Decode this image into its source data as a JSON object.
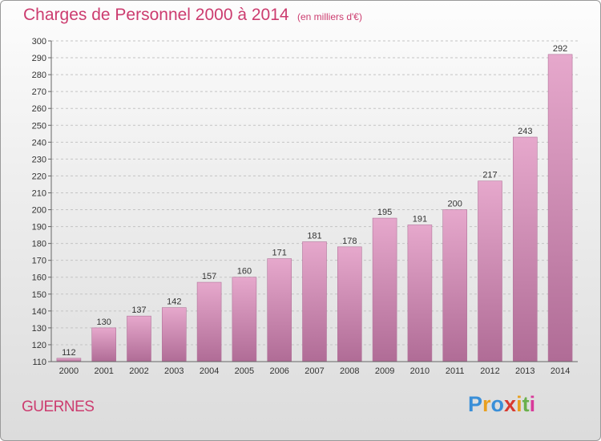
{
  "header": {
    "title": "Charges de Personnel 2000 à 2014",
    "subtitle": "(en milliers d'€)"
  },
  "town": "GUERNES",
  "logo": {
    "text": "Proxiti",
    "letters": [
      "P",
      "r",
      "o",
      "x",
      "i",
      "t",
      "i"
    ],
    "colors": [
      "#3a8fd8",
      "#e8a020",
      "#3a8fd8",
      "#d83a30",
      "#e8a020",
      "#6ab04c",
      "#d83a9a"
    ]
  },
  "colors": {
    "accent": "#cc3c6f",
    "bar_top": "#e6a8cc",
    "bar_bottom": "#b06c96"
  },
  "chart_data": {
    "type": "bar",
    "categories": [
      "2000",
      "2001",
      "2002",
      "2003",
      "2004",
      "2005",
      "2006",
      "2007",
      "2008",
      "2009",
      "2010",
      "2011",
      "2012",
      "2013",
      "2014"
    ],
    "values": [
      112,
      130,
      137,
      142,
      157,
      160,
      171,
      181,
      178,
      195,
      191,
      200,
      217,
      243,
      292
    ],
    "ylim": [
      110,
      300
    ],
    "ytick_step": 10,
    "grid": true,
    "title": "Charges de Personnel 2000 à 2014",
    "xlabel": "",
    "ylabel": ""
  }
}
